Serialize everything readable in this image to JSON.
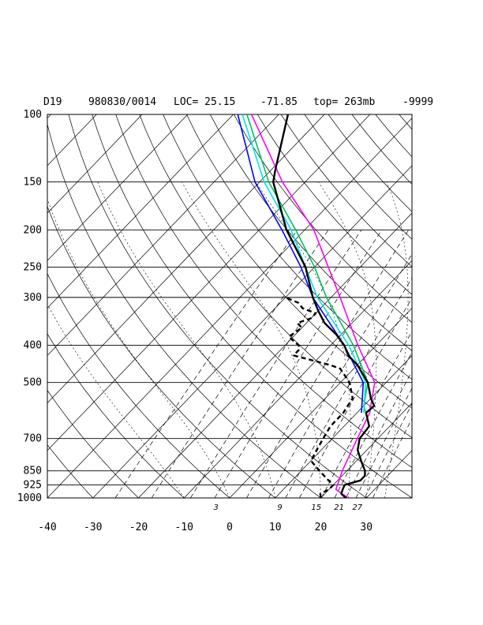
{
  "header": {
    "station": "D19",
    "datetime": "980830/0014",
    "loc": "LOC= 25.15",
    "lon": "-71.85",
    "top": "top= 263mb",
    "missing": "-9999"
  },
  "colors": {
    "grid": "#000000",
    "temperature": "#000000",
    "dewpoint": "#000000",
    "profile_blue": "#0000ff",
    "profile_cyan": "#00e5e5",
    "profile_green": "#00c060",
    "profile_magenta": "#ff00ff"
  },
  "chart_data": {
    "type": "line",
    "chart_kind": "skew-T log-P sounding",
    "x_axis": {
      "range": [
        -40,
        40
      ],
      "ticks": [
        -40,
        -30,
        -20,
        -10,
        0,
        10,
        20,
        30
      ],
      "tick_labels": [
        "-40",
        "-30",
        "-20",
        "-10",
        "0",
        "10",
        "20",
        "30"
      ]
    },
    "y_axis": {
      "scale": "log",
      "range": [
        1000,
        100
      ],
      "ticks": [
        1000,
        925,
        850,
        700,
        500,
        400,
        300,
        250,
        200,
        150,
        100
      ],
      "tick_labels": [
        "1000",
        "925",
        "850",
        "700",
        "500",
        "400",
        "300",
        "250",
        "200",
        "150",
        "100"
      ]
    },
    "mixing_ratio_labels": [
      {
        "label": "3",
        "t_at_1000": -3
      },
      {
        "label": "9",
        "t_at_1000": 11
      },
      {
        "label": "15",
        "t_at_1000": 19
      },
      {
        "label": "21",
        "t_at_1000": 24
      },
      {
        "label": "27",
        "t_at_1000": 28
      }
    ],
    "series": [
      {
        "key": "temperature",
        "style": "solid-thick",
        "points": [
          [
            1000,
            25.5
          ],
          [
            975,
            23.6
          ],
          [
            950,
            23
          ],
          [
            925,
            22.5
          ],
          [
            900,
            25
          ],
          [
            875,
            25
          ],
          [
            850,
            24
          ],
          [
            800,
            21
          ],
          [
            750,
            18
          ],
          [
            700,
            16
          ],
          [
            650,
            15.5
          ],
          [
            600,
            12
          ],
          [
            575,
            12.3
          ],
          [
            550,
            10
          ],
          [
            500,
            6
          ],
          [
            450,
            0
          ],
          [
            425,
            -4
          ],
          [
            400,
            -7
          ],
          [
            375,
            -11
          ],
          [
            350,
            -16
          ],
          [
            325,
            -20
          ],
          [
            300,
            -24
          ],
          [
            250,
            -32
          ],
          [
            200,
            -44
          ],
          [
            150,
            -57
          ],
          [
            140,
            -59
          ],
          [
            100,
            -68
          ]
        ]
      },
      {
        "key": "dewpoint",
        "style": "dashed-thick",
        "points": [
          [
            1000,
            20
          ],
          [
            975,
            19
          ],
          [
            950,
            20
          ],
          [
            925,
            20
          ],
          [
            900,
            18
          ],
          [
            850,
            14
          ],
          [
            800,
            10
          ],
          [
            750,
            9
          ],
          [
            700,
            8
          ],
          [
            650,
            7
          ],
          [
            600,
            7
          ],
          [
            550,
            6
          ],
          [
            500,
            2
          ],
          [
            460,
            -3
          ],
          [
            450,
            -6
          ],
          [
            425,
            -16
          ],
          [
            410,
            -16
          ],
          [
            400,
            -17
          ],
          [
            380,
            -21
          ],
          [
            360,
            -20
          ],
          [
            350,
            -22
          ],
          [
            340,
            -20
          ],
          [
            330,
            -20
          ],
          [
            320,
            -24
          ],
          [
            310,
            -26
          ],
          [
            300,
            -30
          ]
        ]
      },
      {
        "key": "profile_magenta",
        "style": "solid",
        "points": [
          [
            1000,
            26
          ],
          [
            950,
            21.5
          ],
          [
            850,
            19
          ],
          [
            700,
            15.5
          ],
          [
            600,
            12.8
          ],
          [
            500,
            7.5
          ],
          [
            400,
            -4
          ],
          [
            300,
            -18
          ],
          [
            250,
            -27
          ],
          [
            200,
            -38
          ],
          [
            150,
            -55
          ],
          [
            100,
            -76
          ]
        ]
      },
      {
        "key": "profile_green",
        "style": "solid",
        "points": [
          [
            600,
            12
          ],
          [
            575,
            10
          ],
          [
            500,
            6
          ],
          [
            400,
            -5
          ],
          [
            300,
            -21
          ],
          [
            250,
            -30
          ],
          [
            200,
            -42
          ],
          [
            150,
            -58
          ],
          [
            100,
            -77
          ]
        ]
      },
      {
        "key": "profile_cyan",
        "style": "solid",
        "points": [
          [
            600,
            11.5
          ],
          [
            500,
            5.5
          ],
          [
            400,
            -6
          ],
          [
            300,
            -23
          ],
          [
            250,
            -32
          ],
          [
            200,
            -43
          ],
          [
            150,
            -59
          ],
          [
            100,
            -78
          ]
        ]
      },
      {
        "key": "profile_blue",
        "style": "solid",
        "points": [
          [
            600,
            11
          ],
          [
            500,
            5
          ],
          [
            400,
            -7
          ],
          [
            300,
            -24
          ],
          [
            250,
            -33
          ],
          [
            200,
            -45
          ],
          [
            150,
            -61
          ],
          [
            100,
            -79
          ]
        ]
      }
    ]
  }
}
